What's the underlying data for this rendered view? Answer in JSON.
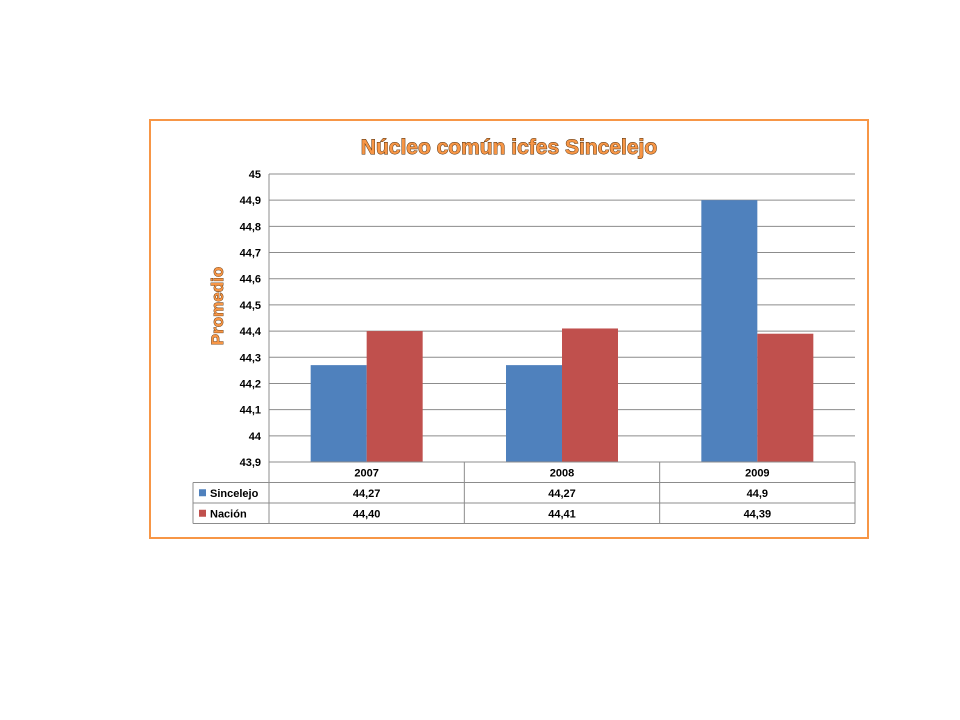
{
  "chart_data": {
    "type": "bar",
    "title": "Núcleo común  icfes  Sincelejo",
    "xlabel": "",
    "ylabel": "Promedio",
    "categories": [
      "2007",
      "2008",
      "2009"
    ],
    "ylim": [
      43.9,
      45
    ],
    "ytick_step": 0.1,
    "yticks": [
      "43,9",
      "44",
      "44,1",
      "44,2",
      "44,3",
      "44,4",
      "44,5",
      "44,6",
      "44,7",
      "44,8",
      "44,9",
      "45"
    ],
    "grid": true,
    "legend": "data-table",
    "series": [
      {
        "name": "Sincelejo",
        "color": "#4f81bd",
        "values": [
          44.27,
          44.27,
          44.9
        ],
        "labels": [
          "44,27",
          "44,27",
          "44,9"
        ]
      },
      {
        "name": "Nación",
        "color": "#c0504d",
        "values": [
          44.4,
          44.41,
          44.39
        ],
        "labels": [
          "44,40",
          "44,41",
          "44,39"
        ]
      }
    ],
    "frame_color": "#f79646"
  }
}
